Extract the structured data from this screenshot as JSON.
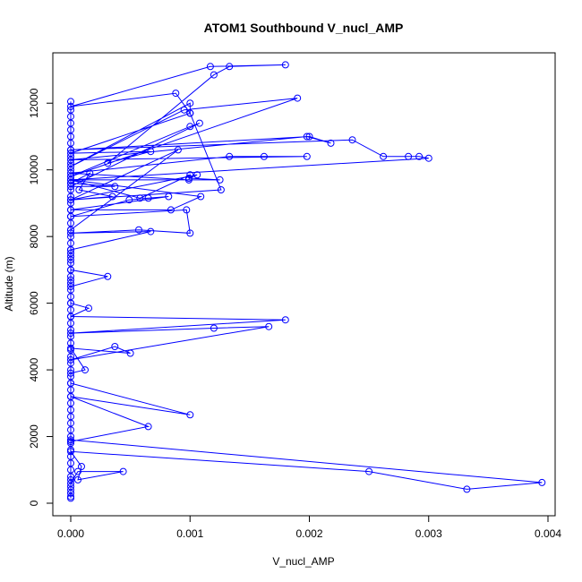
{
  "chart_data": {
    "type": "line",
    "title": "ATOM1 Southbound V_nucl_AMP",
    "xlabel": "V_nucl_AMP",
    "ylabel": "Altitude (m)",
    "xlim": [
      0,
      0.004
    ],
    "ylim": [
      0,
      13000
    ],
    "xticks": [
      0.0,
      0.001,
      0.002,
      0.003,
      0.004
    ],
    "xtick_labels": [
      "0.000",
      "0.001",
      "0.002",
      "0.003",
      "0.004"
    ],
    "yticks": [
      0,
      2000,
      4000,
      6000,
      8000,
      10000,
      12000
    ],
    "ytick_labels": [
      "0",
      "2000",
      "4000",
      "6000",
      "8000",
      "10000",
      "12000"
    ],
    "grid": false,
    "series_color": "#0000ff",
    "marker": "open-circle",
    "series": [
      {
        "x": [
          0,
          0,
          0,
          6e-05,
          0.00044,
          6e-05,
          9e-05,
          0,
          0.0025,
          0.00332,
          0.00395,
          0,
          0,
          0.00065,
          0,
          0.001,
          0,
          0,
          0.00012,
          0,
          0.0005,
          0.00037,
          0,
          0.00166,
          0.0012,
          0,
          0.0018,
          0,
          0.00015,
          0,
          0,
          0.00031,
          0,
          0,
          0,
          0.00067,
          0,
          0.00057,
          0.001,
          0.00097,
          0,
          0.00049,
          0.00065,
          0.00082,
          0,
          0.00084,
          0.00109,
          0,
          0.00058,
          0.001,
          0.00099,
          0,
          0.00133,
          0.00162,
          0.00198,
          0,
          0.00198,
          0.00218,
          0.002,
          0,
          0.00236,
          0.00262,
          0.00283,
          0.00292,
          0.003,
          0,
          0.00125,
          0.00099,
          0.00106,
          0,
          0.00126,
          0.001,
          0,
          0.00067,
          0.00031,
          0.0012,
          0.00133,
          0.0018,
          0.00117,
          0,
          0.00088,
          0.001,
          0.001,
          0,
          0.00095,
          0.0019,
          0,
          0.001,
          0.00108,
          0,
          0.00037,
          0,
          0.00016,
          7e-05,
          0.00035,
          0,
          0.0009,
          0,
          0,
          0
        ],
        "y": [
          150,
          300,
          600,
          950,
          950,
          700,
          1100,
          1550,
          950,
          420,
          620,
          1900,
          1850,
          2300,
          3200,
          2650,
          3600,
          3900,
          4000,
          4650,
          4500,
          4700,
          4300,
          5300,
          5250,
          5100,
          5500,
          5600,
          5850,
          6000,
          6500,
          6800,
          7000,
          7300,
          7600,
          8150,
          8100,
          8200,
          8100,
          8800,
          8600,
          9100,
          9150,
          9200,
          8800,
          8800,
          9200,
          9700,
          9150,
          9850,
          9700,
          9900,
          10400,
          10400,
          10400,
          10300,
          11000,
          10800,
          11000,
          10600,
          10900,
          10400,
          10400,
          10400,
          10350,
          9700,
          9700,
          9750,
          9850,
          9100,
          9400,
          11700,
          10500,
          10550,
          10200,
          12850,
          13100,
          13150,
          13100,
          11900,
          12300,
          11700,
          12000,
          10100,
          11800,
          12150,
          9800,
          11300,
          11400,
          9500,
          9500,
          9600,
          9900,
          9400,
          9200,
          9100,
          10600,
          8200,
          7500,
          6700
        ]
      },
      {
        "x": [
          0,
          0,
          0,
          0,
          0,
          0,
          0,
          0,
          0,
          0,
          0,
          0,
          0,
          0,
          0,
          0,
          0,
          0,
          0,
          0,
          0,
          0,
          0,
          0,
          0,
          0,
          0,
          0,
          0,
          0,
          0,
          0,
          0,
          0,
          0,
          0,
          0,
          0,
          0,
          0,
          0,
          0,
          0,
          0,
          0,
          0,
          0,
          0,
          0,
          0,
          0,
          0,
          0,
          0,
          0,
          0,
          0,
          0,
          0,
          0,
          0
        ],
        "y": [
          200,
          400,
          500,
          700,
          800,
          1000,
          1200,
          1400,
          1600,
          1800,
          2000,
          2200,
          2400,
          2600,
          2800,
          3000,
          3200,
          3400,
          3600,
          3800,
          4000,
          4200,
          4400,
          4600,
          4800,
          5000,
          5200,
          5400,
          5600,
          5800,
          6000,
          6200,
          6400,
          6600,
          6800,
          7000,
          7200,
          7400,
          7600,
          7800,
          8000,
          8200,
          8400,
          8600,
          8800,
          9000,
          9200,
          9400,
          9600,
          9800,
          10000,
          10200,
          10400,
          10600,
          10800,
          11000,
          11200,
          11400,
          11600,
          11800,
          12050
        ]
      }
    ]
  }
}
